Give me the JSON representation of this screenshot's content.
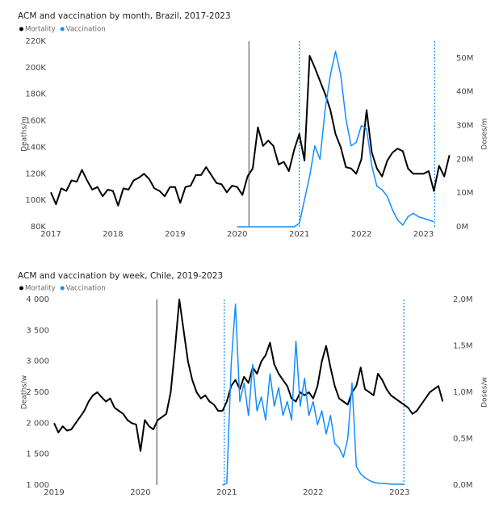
{
  "chart_data": [
    {
      "type": "line",
      "title": "ACM and vaccination by month, Brazil, 2017-2023",
      "ylabel": "Deaths/m",
      "y2label": "Doses/m",
      "xlim": [
        2017,
        2023.5
      ],
      "xticks": [
        2017,
        2018,
        2019,
        2020,
        2021,
        2022,
        2023
      ],
      "ylim": [
        80000,
        220000
      ],
      "yticks": [
        {
          "value": 80000,
          "label": "80K"
        },
        {
          "value": 100000,
          "label": "100K"
        },
        {
          "value": 120000,
          "label": "120K"
        },
        {
          "value": 140000,
          "label": "140K"
        },
        {
          "value": 160000,
          "label": "160K"
        },
        {
          "value": 180000,
          "label": "180K"
        },
        {
          "value": 200000,
          "label": "200K"
        },
        {
          "value": 220000,
          "label": "220K"
        }
      ],
      "y2lim": [
        0,
        55000000
      ],
      "y2ticks": [
        {
          "value": 0,
          "label": "0M"
        },
        {
          "value": 10000000,
          "label": "10M"
        },
        {
          "value": 20000000,
          "label": "20M"
        },
        {
          "value": 30000000,
          "label": "30M"
        },
        {
          "value": 40000000,
          "label": "40M"
        },
        {
          "value": 50000000,
          "label": "50M"
        }
      ],
      "vlines": [
        {
          "value": 2020.19,
          "color": "#808080",
          "style": "solid"
        },
        {
          "value": 2021.0,
          "color": "#118dff",
          "style": "dotted"
        },
        {
          "value": 2023.18,
          "color": "#118dff",
          "style": "dotted"
        }
      ],
      "x": [
        2017,
        2017.083,
        2017.167,
        2017.25,
        2017.333,
        2017.417,
        2017.5,
        2017.583,
        2017.667,
        2017.75,
        2017.833,
        2017.917,
        2018,
        2018.083,
        2018.167,
        2018.25,
        2018.333,
        2018.417,
        2018.5,
        2018.583,
        2018.667,
        2018.75,
        2018.833,
        2018.917,
        2019,
        2019.083,
        2019.167,
        2019.25,
        2019.333,
        2019.417,
        2019.5,
        2019.583,
        2019.667,
        2019.75,
        2019.833,
        2019.917,
        2020,
        2020.083,
        2020.167,
        2020.25,
        2020.333,
        2020.417,
        2020.5,
        2020.583,
        2020.667,
        2020.75,
        2020.833,
        2020.917,
        2021,
        2021.083,
        2021.167,
        2021.25,
        2021.333,
        2021.417,
        2021.5,
        2021.583,
        2021.667,
        2021.75,
        2021.833,
        2021.917,
        2022,
        2022.083,
        2022.167,
        2022.25,
        2022.333,
        2022.417,
        2022.5,
        2022.583,
        2022.667,
        2022.75,
        2022.833,
        2022.917,
        2023,
        2023.083,
        2023.167,
        2023.25,
        2023.333,
        2023.417
      ],
      "series": [
        {
          "name": "Mortality",
          "color": "#000000",
          "values": [
            106000,
            97000,
            109000,
            107000,
            115000,
            114000,
            123000,
            115000,
            108000,
            110000,
            103000,
            108000,
            107000,
            96000,
            109000,
            108000,
            115000,
            117000,
            120000,
            116000,
            109000,
            107000,
            103000,
            110000,
            110000,
            98000,
            110000,
            111000,
            119000,
            119000,
            125000,
            119000,
            113000,
            112000,
            106000,
            111000,
            110000,
            104000,
            118000,
            124000,
            155000,
            141000,
            145000,
            141000,
            127000,
            129000,
            122000,
            138000,
            150000,
            130000,
            209000,
            200000,
            190000,
            180000,
            168000,
            150000,
            140000,
            125000,
            124000,
            120000,
            131000,
            168000,
            136000,
            124000,
            118000,
            130000,
            136000,
            139000,
            137000,
            124000,
            120000,
            120000,
            120000,
            122000,
            107000,
            126000,
            118000,
            134000
          ]
        },
        {
          "name": "Vaccination",
          "color": "#118dff",
          "axis": "y2",
          "values": [
            null,
            null,
            null,
            null,
            null,
            null,
            null,
            null,
            null,
            null,
            null,
            null,
            null,
            null,
            null,
            null,
            null,
            null,
            null,
            null,
            null,
            null,
            null,
            null,
            null,
            null,
            null,
            null,
            null,
            null,
            null,
            null,
            null,
            null,
            null,
            null,
            0,
            0,
            0,
            0,
            0,
            0,
            0,
            0,
            0,
            0,
            0,
            0,
            1000000,
            8000000,
            15000000,
            24000000,
            20000000,
            35000000,
            45000000,
            52000000,
            45000000,
            32000000,
            24000000,
            25000000,
            30000000,
            29000000,
            18000000,
            12000000,
            11000000,
            9000000,
            5000000,
            2000000,
            500000,
            3000000,
            4000000,
            3000000,
            2500000,
            2000000,
            1500000,
            null,
            null,
            null
          ]
        }
      ]
    },
    {
      "type": "line",
      "title": "ACM and vaccination by week, Chile, 2019-2023",
      "ylabel": "Deaths/w",
      "y2label": "Doses/w",
      "xlim": [
        2019,
        2023.6
      ],
      "xticks": [
        2019,
        2020,
        2021,
        2022,
        2023
      ],
      "ylim": [
        1000,
        4000
      ],
      "yticks": [
        {
          "value": 1000,
          "label": "1 000"
        },
        {
          "value": 1500,
          "label": "1 500"
        },
        {
          "value": 2000,
          "label": "2 000"
        },
        {
          "value": 2500,
          "label": "2 500"
        },
        {
          "value": 3000,
          "label": "3 000"
        },
        {
          "value": 3500,
          "label": "3 500"
        },
        {
          "value": 4000,
          "label": "4 000"
        }
      ],
      "y2lim": [
        0,
        2000000
      ],
      "y2ticks": [
        {
          "value": 0,
          "label": "0,0M"
        },
        {
          "value": 500000,
          "label": "0,5M"
        },
        {
          "value": 1000000,
          "label": "1,0M"
        },
        {
          "value": 1500000,
          "label": "1,5M"
        },
        {
          "value": 2000000,
          "label": "2,0M"
        }
      ],
      "vlines": [
        {
          "value": 2020.19,
          "color": "#808080",
          "style": "solid"
        },
        {
          "value": 2020.97,
          "color": "#118dff",
          "style": "dotted"
        },
        {
          "value": 2023.05,
          "color": "#118dff",
          "style": "dotted"
        }
      ],
      "x": [
        2019,
        2019.05,
        2019.1,
        2019.15,
        2019.2,
        2019.25,
        2019.3,
        2019.35,
        2019.4,
        2019.45,
        2019.5,
        2019.55,
        2019.6,
        2019.65,
        2019.7,
        2019.75,
        2019.8,
        2019.85,
        2019.9,
        2019.95,
        2020,
        2020.05,
        2020.1,
        2020.15,
        2020.2,
        2020.25,
        2020.3,
        2020.35,
        2020.4,
        2020.45,
        2020.5,
        2020.55,
        2020.6,
        2020.65,
        2020.7,
        2020.75,
        2020.8,
        2020.85,
        2020.9,
        2020.95,
        2021,
        2021.05,
        2021.1,
        2021.15,
        2021.2,
        2021.25,
        2021.3,
        2021.35,
        2021.4,
        2021.45,
        2021.5,
        2021.55,
        2021.6,
        2021.65,
        2021.7,
        2021.75,
        2021.8,
        2021.85,
        2021.9,
        2021.95,
        2022,
        2022.05,
        2022.1,
        2022.15,
        2022.2,
        2022.25,
        2022.3,
        2022.35,
        2022.4,
        2022.45,
        2022.5,
        2022.55,
        2022.6,
        2022.65,
        2022.7,
        2022.75,
        2022.8,
        2022.85,
        2022.9,
        2022.95,
        2023,
        2023.05,
        2023.1,
        2023.15,
        2023.2,
        2023.25,
        2023.3,
        2023.35,
        2023.4,
        2023.45,
        2023.5
      ],
      "series": [
        {
          "name": "Mortality",
          "color": "#000000",
          "values": [
            2000,
            1850,
            1950,
            1880,
            1900,
            2000,
            2100,
            2200,
            2350,
            2450,
            2500,
            2420,
            2350,
            2400,
            2250,
            2200,
            2150,
            2050,
            2000,
            1980,
            1550,
            2050,
            1950,
            1900,
            2050,
            2100,
            2150,
            2500,
            3200,
            4000,
            3500,
            3000,
            2700,
            2500,
            2400,
            2450,
            2350,
            2300,
            2200,
            2200,
            2350,
            2600,
            2700,
            2550,
            2750,
            2650,
            2900,
            2800,
            3000,
            3100,
            3300,
            2950,
            2800,
            2700,
            2600,
            2400,
            2350,
            2500,
            2450,
            2500,
            2400,
            2600,
            3000,
            3250,
            2900,
            2600,
            2400,
            2350,
            2300,
            2500,
            2600,
            2900,
            2550,
            2500,
            2450,
            2800,
            2700,
            2550,
            2450,
            2400,
            2350,
            2300,
            2250,
            2150,
            2200,
            2300,
            2400,
            2500,
            2550,
            2600,
            2350
          ]
        },
        {
          "name": "Vaccination",
          "color": "#118dff",
          "axis": "y2",
          "values": [
            null,
            null,
            null,
            null,
            null,
            null,
            null,
            null,
            null,
            null,
            null,
            null,
            null,
            null,
            null,
            null,
            null,
            null,
            null,
            null,
            null,
            null,
            null,
            null,
            null,
            null,
            null,
            null,
            null,
            null,
            null,
            null,
            null,
            null,
            null,
            null,
            null,
            null,
            null,
            0,
            20000,
            1300000,
            1950000,
            900000,
            1100000,
            750000,
            1300000,
            800000,
            950000,
            700000,
            1200000,
            850000,
            1050000,
            750000,
            900000,
            700000,
            1550000,
            850000,
            1150000,
            750000,
            900000,
            650000,
            800000,
            550000,
            750000,
            450000,
            400000,
            300000,
            500000,
            1100000,
            200000,
            120000,
            80000,
            50000,
            30000,
            20000,
            20000,
            15000,
            10000,
            10000,
            10000,
            5000,
            null,
            null,
            null,
            null,
            null,
            null,
            null,
            null,
            null
          ]
        }
      ]
    }
  ]
}
